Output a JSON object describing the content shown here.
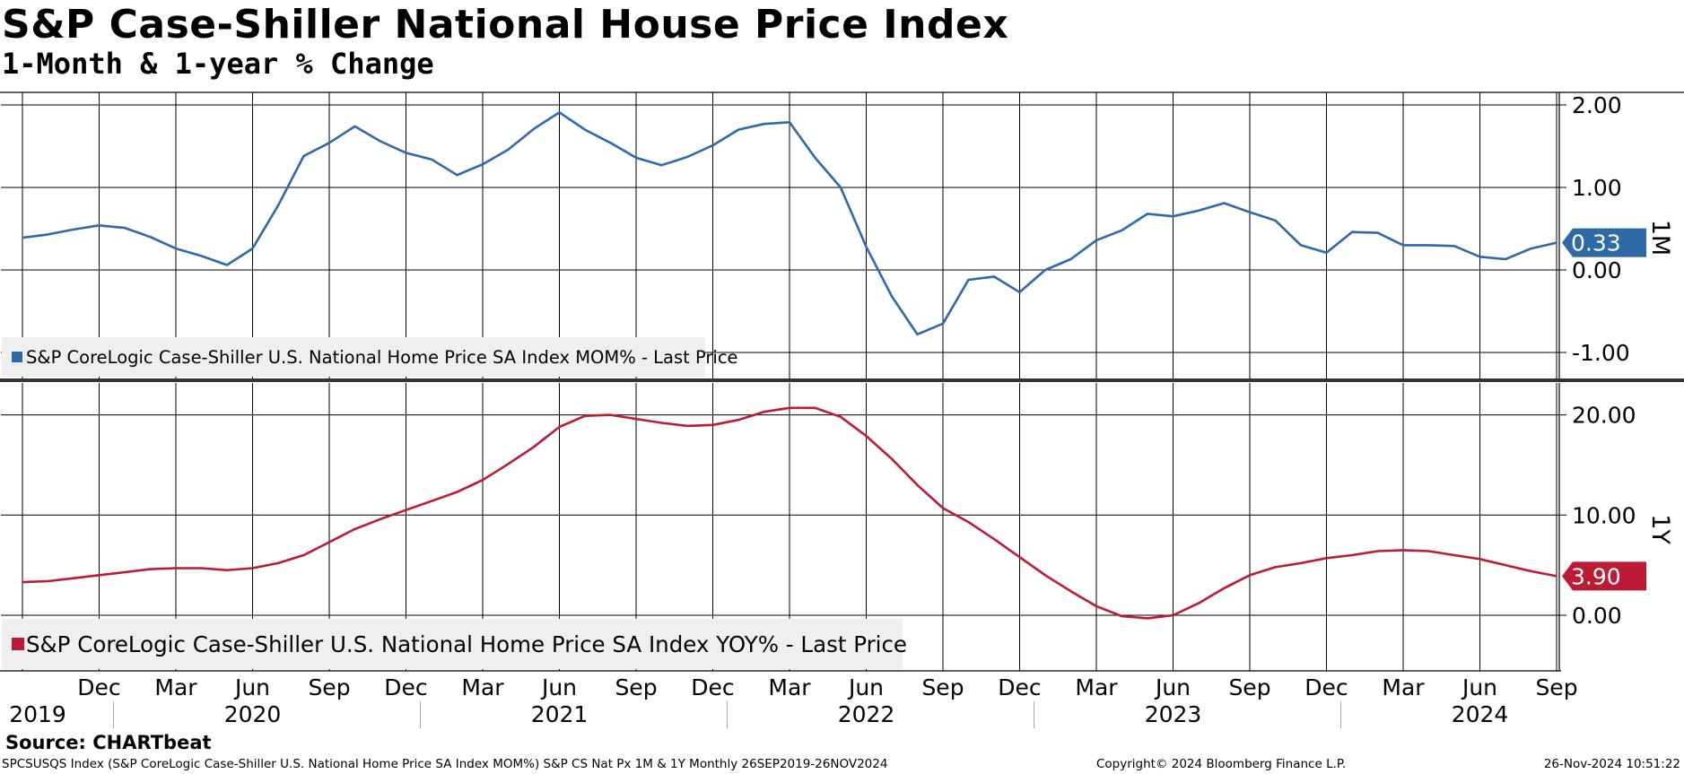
{
  "header": {
    "title": "S&P Case-Shiller National House Price Index",
    "subtitle": "1-Month & 1-year % Change"
  },
  "footer": {
    "source": "Source:  CHARTbeat",
    "left": "SPCSUSQS Index (S&P CoreLogic Case-Shiller U.S. National Home Price SA Index MOM%) S&P CS Nat Px 1M & 1Y  Monthly 26SEP2019-26NOV2024",
    "copyright": "Copyright© 2024 Bloomberg Finance L.P.",
    "timestamp": "26-Nov-2024 10:51:22"
  },
  "chart_data": [
    {
      "type": "line",
      "panel_label": "1M",
      "start": "2019-09",
      "ylim": [
        -1.3,
        2.2
      ],
      "yticks": [
        "2.00",
        "1.00",
        "0.00",
        "-1.00"
      ],
      "grid": true,
      "legend": "bottom-left",
      "color": "#2e6aa8",
      "series": [
        {
          "name": "S&P CoreLogic Case-Shiller U.S. National Home Price SA Index MOM% - Last Price",
          "values": [
            0.39,
            0.43,
            0.49,
            0.54,
            0.51,
            0.4,
            0.26,
            0.17,
            0.06,
            0.26,
            0.78,
            1.38,
            1.54,
            1.74,
            1.56,
            1.42,
            1.34,
            1.15,
            1.28,
            1.46,
            1.71,
            1.91,
            1.7,
            1.54,
            1.36,
            1.27,
            1.37,
            1.51,
            1.7,
            1.77,
            1.79,
            1.36,
            1.0,
            0.28,
            -0.32,
            -0.78,
            -0.65,
            -0.12,
            -0.08,
            -0.27,
            0.0,
            0.13,
            0.36,
            0.48,
            0.68,
            0.65,
            0.72,
            0.81,
            0.7,
            0.6,
            0.3,
            0.21,
            0.46,
            0.45,
            0.3,
            0.3,
            0.29,
            0.16,
            0.13,
            0.26,
            0.33
          ]
        }
      ],
      "last_value": "0.33"
    },
    {
      "type": "line",
      "panel_label": "1Y",
      "start": "2019-09",
      "ylim": [
        -5.5,
        23
      ],
      "yticks": [
        "20.00",
        "10.00",
        "0.00"
      ],
      "grid": true,
      "legend": "bottom-left",
      "color": "#bd1a35",
      "series": [
        {
          "name": "S&P CoreLogic Case-Shiller U.S. National Home Price SA Index YOY% - Last Price",
          "values": [
            3.3,
            3.4,
            3.7,
            4.0,
            4.3,
            4.6,
            4.7,
            4.7,
            4.5,
            4.7,
            5.2,
            6.0,
            7.3,
            8.6,
            9.6,
            10.5,
            11.4,
            12.3,
            13.5,
            15.1,
            16.8,
            18.8,
            19.9,
            20.0,
            19.6,
            19.2,
            18.9,
            19.0,
            19.5,
            20.3,
            20.7,
            20.7,
            19.8,
            17.9,
            15.6,
            13.0,
            10.7,
            9.3,
            7.6,
            5.8,
            4.0,
            2.4,
            0.9,
            -0.1,
            -0.3,
            0.0,
            1.2,
            2.7,
            4.0,
            4.8,
            5.2,
            5.7,
            6.0,
            6.4,
            6.5,
            6.4,
            6.0,
            5.6,
            5.0,
            4.4,
            3.9
          ]
        }
      ],
      "last_value": "3.90"
    }
  ],
  "x_axis": {
    "month_labels": [
      "Dec",
      "Mar",
      "Jun",
      "Sep",
      "Dec",
      "Mar",
      "Jun",
      "Sep",
      "Dec",
      "Mar",
      "Jun",
      "Sep",
      "Dec",
      "Mar",
      "Jun",
      "Sep",
      "Dec",
      "Mar",
      "Jun",
      "Sep"
    ],
    "year_labels": [
      "2019",
      "2020",
      "2021",
      "2022",
      "2023",
      "2024"
    ]
  }
}
